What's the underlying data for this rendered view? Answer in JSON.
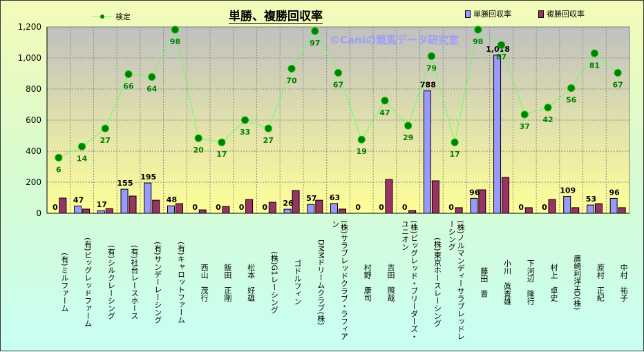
{
  "chart_data": {
    "type": "bar",
    "title": "単勝、複勝回収率",
    "watermark": "©Caniの競馬データ研究室",
    "categories": [
      "(有)ミルファーム",
      "(有)ビッグレッドファーム",
      "(有)シルクレーシング",
      "(有)社台レースホース",
      "(有)サンデーレーシング",
      "(有)キャロットファーム",
      "西山　茂行",
      "飯田　正剛",
      "松本　好雄",
      "(株)G1レーシング",
      "ゴドルフィン",
      "DMMドリームクラブ(株)",
      "(株)サラブレッドクラブ・ラフィアン",
      "村野　康司",
      "吉田　照哉",
      "(株)ビッグレッド・ブリーダーズ・ユニオン",
      "(株)東京ホースレーシング",
      "(株)ノルマンディーサラブレッドレーシング",
      "藤田　晋",
      "小川　眞査雄",
      "下河辺　隆行",
      "村上　卓史",
      "廣崎利洋HD(株)",
      "原村　正紀",
      "中村　祐子"
    ],
    "series": [
      {
        "name": "単勝回収率",
        "type": "bar",
        "color": "#9999ff",
        "values": [
          0,
          47,
          17,
          155,
          195,
          48,
          0,
          0,
          0,
          0,
          26,
          57,
          63,
          0,
          0,
          0,
          788,
          0,
          96,
          1018,
          0,
          0,
          109,
          53,
          96
        ],
        "labels": [
          "0",
          "47",
          "17",
          "155",
          "195",
          "48",
          "0",
          "0",
          "0",
          "0",
          "26",
          "57",
          "63",
          "0",
          "0",
          "0",
          "788",
          "0",
          "96",
          "1,018",
          "0",
          "0",
          "109",
          "53",
          "96"
        ]
      },
      {
        "name": "複勝回収率",
        "type": "bar",
        "color": "#993366",
        "values": [
          98,
          27,
          30,
          111,
          84,
          62,
          22,
          44,
          89,
          71,
          147,
          84,
          27,
          0,
          218,
          18,
          209,
          36,
          151,
          231,
          36,
          89,
          36,
          62,
          36
        ]
      },
      {
        "name": "検定",
        "type": "line",
        "axis": "secondary",
        "color": "#66ff66",
        "marker_color": "#008000",
        "values": [
          6,
          14,
          27,
          66,
          64,
          98,
          20,
          17,
          33,
          27,
          70,
          97,
          67,
          19,
          47,
          29,
          79,
          17,
          98,
          87,
          37,
          42,
          56,
          81,
          67
        ]
      }
    ],
    "ylim": [
      0,
      1200
    ],
    "yticks": [
      "0",
      "200",
      "400",
      "600",
      "800",
      "1,000",
      "1,200"
    ],
    "y2lim": [
      -34,
      100
    ],
    "grid": true,
    "legend": "top"
  }
}
